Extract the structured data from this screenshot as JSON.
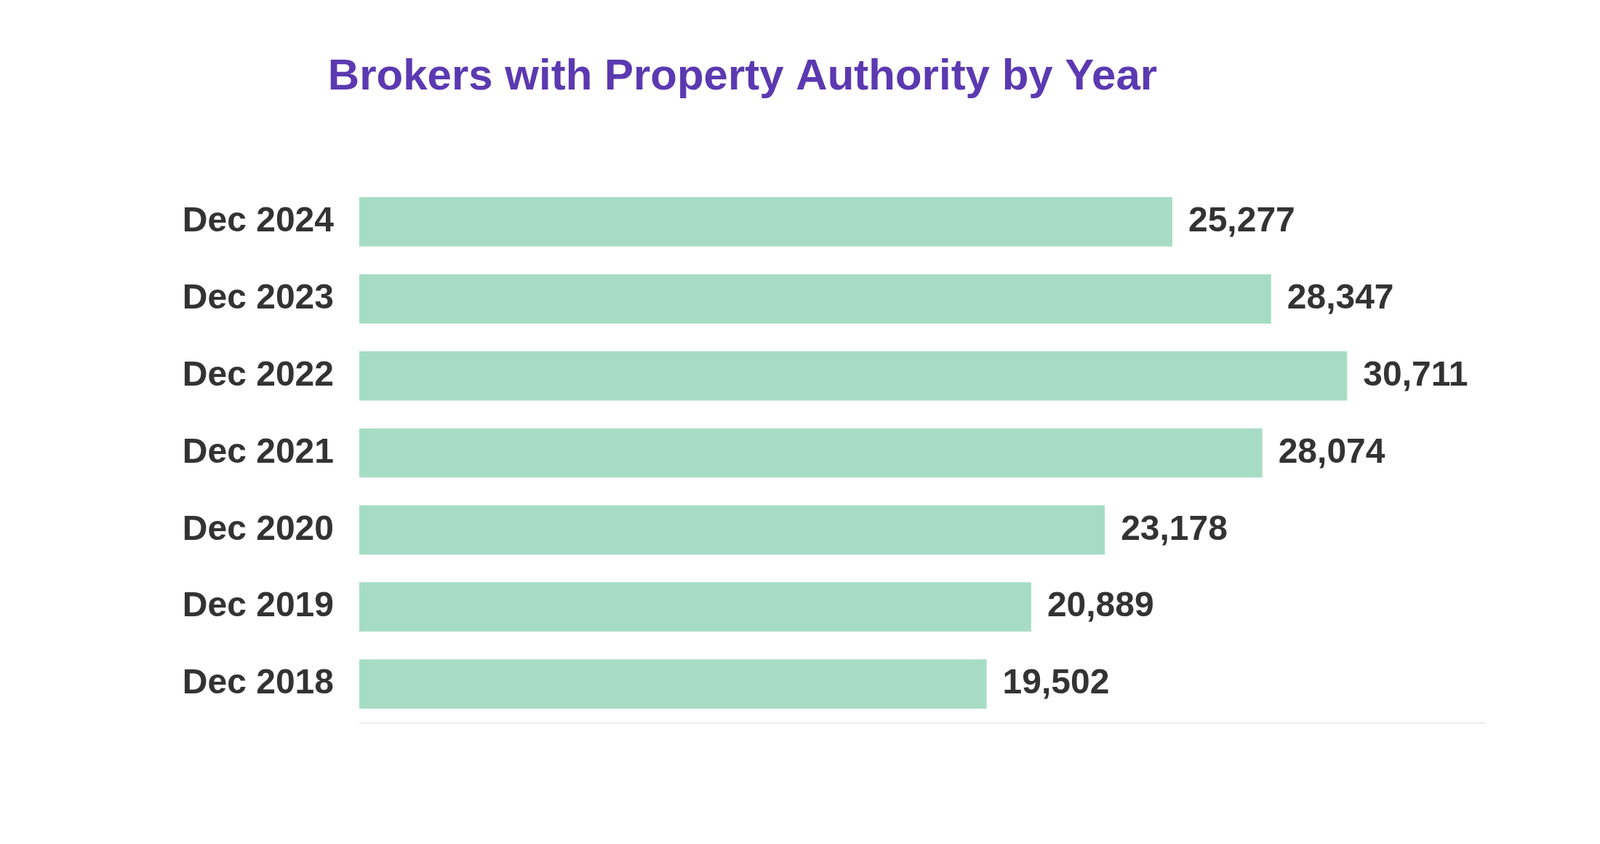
{
  "chart_data": {
    "type": "bar",
    "orientation": "horizontal",
    "title": "Brokers with Property Authority by Year",
    "categories": [
      "Dec 2024",
      "Dec 2023",
      "Dec 2022",
      "Dec 2021",
      "Dec 2020",
      "Dec 2019",
      "Dec 2018"
    ],
    "values": [
      25277,
      28347,
      30711,
      28074,
      23178,
      20889,
      19502
    ],
    "value_labels": [
      "25,277",
      "28,347",
      "30,711",
      "28,074",
      "23,178",
      "20,889",
      "19,502"
    ],
    "color": "#a6dcc5",
    "xlim": [
      0,
      35000
    ],
    "grid": false,
    "data_labels": true,
    "tick_labels": "y"
  }
}
